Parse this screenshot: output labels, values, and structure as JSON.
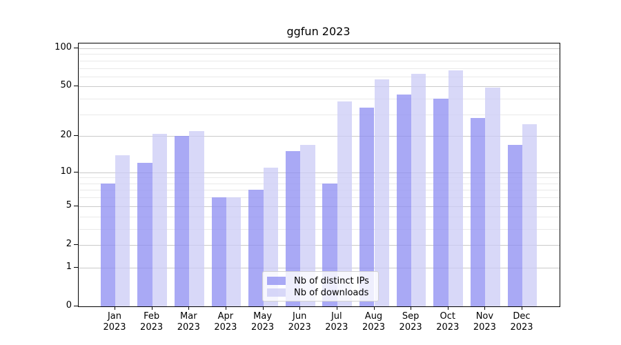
{
  "title": "ggfun 2023",
  "chart_data": {
    "type": "bar",
    "title": "ggfun 2023",
    "y_scale": "log1p",
    "ylim": [
      0,
      109
    ],
    "grid": true,
    "legend_position": "bottom-center-inside",
    "categories": [
      "Jan 2023",
      "Feb 2023",
      "Mar 2023",
      "Apr 2023",
      "May 2023",
      "Jun 2023",
      "Jul 2023",
      "Aug 2023",
      "Sep 2023",
      "Oct 2023",
      "Nov 2023",
      "Dec 2023"
    ],
    "x_tick_month": [
      "Jan",
      "Feb",
      "Mar",
      "Apr",
      "May",
      "Jun",
      "Jul",
      "Aug",
      "Sep",
      "Oct",
      "Nov",
      "Dec"
    ],
    "x_tick_year": "2023",
    "y_ticks": [
      0,
      1,
      2,
      5,
      10,
      20,
      50,
      100
    ],
    "y_minor_gridlines": [
      3,
      4,
      6,
      7,
      8,
      9,
      30,
      40,
      60,
      70,
      80,
      90
    ],
    "series": [
      {
        "name": "Nb of distinct IPs",
        "color": "rgba(140,140,242,0.75)",
        "values": [
          8,
          12,
          20,
          6,
          7,
          15,
          8,
          34,
          43,
          40,
          28,
          17
        ]
      },
      {
        "name": "Nb of downloads",
        "color": "rgba(203,203,246,0.75)",
        "values": [
          14,
          21,
          22,
          6,
          11,
          17,
          38,
          57,
          63,
          67,
          49,
          25
        ]
      }
    ],
    "colors": {
      "major_grid": "#c9c9c9",
      "minor_grid": "#e9e9e9",
      "axis": "#000000",
      "title": "#000000"
    }
  }
}
